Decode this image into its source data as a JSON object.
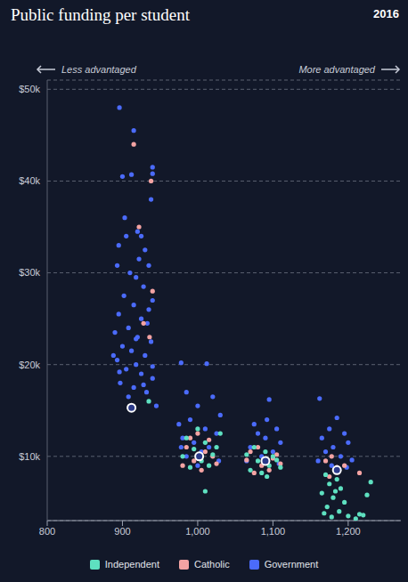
{
  "chart_data": {
    "type": "scatter",
    "title": "Public funding per student",
    "subtitle": "2016",
    "annotations": [
      "Less advantaged",
      "More advantaged"
    ],
    "xlim": [
      800,
      1270
    ],
    "xticks": [
      800,
      900,
      {
        "value": 1000,
        "label": "1,000"
      },
      {
        "value": 1100,
        "label": "1,100"
      },
      {
        "value": 1200,
        "label": "1,200"
      }
    ],
    "ylim": [
      3000,
      51000
    ],
    "yticks": [
      {
        "value": 10000,
        "label": "$10k"
      },
      {
        "value": 20000,
        "label": "$20k"
      },
      {
        "value": 30000,
        "label": "$30k"
      },
      {
        "value": 40000,
        "label": "$40k"
      },
      {
        "value": 50000,
        "label": "$50k"
      }
    ],
    "grid": true,
    "legend": "bottom",
    "marker": "circle",
    "series": [
      {
        "name": "Independent",
        "color": "#5ee0c0",
        "x": [
          935,
          1000,
          985,
          1010,
          995,
          1020,
          980,
          1005,
          1015,
          990,
          1025,
          1010,
          1030,
          1075,
          1090,
          1100,
          1080,
          1095,
          1110,
          1070,
          1085,
          1105,
          1065,
          1092,
          1170,
          1185,
          1175,
          1190,
          1165,
          1180,
          1195,
          1172,
          1188,
          1168,
          1200,
          1215,
          1230,
          1225,
          1178,
          1210,
          1220,
          1183
        ],
        "y": [
          16000,
          13000,
          12000,
          11500,
          10800,
          10200,
          10000,
          9500,
          9000,
          8800,
          11000,
          6200,
          12500,
          11000,
          10500,
          10000,
          9500,
          9000,
          8800,
          8500,
          8200,
          9600,
          10200,
          7800,
          8000,
          7500,
          7000,
          6500,
          6000,
          5500,
          5000,
          4500,
          4000,
          3800,
          3500,
          3700,
          7200,
          5800,
          3400,
          3200,
          3600,
          6200
        ]
      },
      {
        "name": "Catholic",
        "color": "#f4a3a3",
        "x": [
          915,
          938,
          922,
          940,
          936,
          928,
          1000,
          985,
          1010,
          995,
          1020,
          980,
          1005,
          1015,
          990,
          1025,
          1070,
          1085,
          1100,
          1075,
          1095,
          1110,
          1080,
          1065,
          1105,
          1170,
          1185,
          1178,
          1195,
          1175,
          1215
        ],
        "y": [
          44000,
          40000,
          35000,
          28000,
          23000,
          24500,
          12500,
          11000,
          10500,
          9500,
          10000,
          9000,
          8500,
          11800,
          12000,
          9200,
          10500,
          9000,
          9800,
          8200,
          8500,
          9200,
          11000,
          9600,
          10200,
          9500,
          8800,
          10000,
          9000,
          7800,
          8200
        ]
      },
      {
        "name": "Government",
        "color": "#4b6bfb",
        "x": [
          896,
          915,
          900,
          912,
          940,
          940,
          938,
          920,
          925,
          895,
          905,
          930,
          935,
          893,
          910,
          918,
          928,
          902,
          940,
          915,
          895,
          925,
          933,
          908,
          890,
          920,
          938,
          900,
          912,
          930,
          893,
          918,
          905,
          925,
          940,
          897,
          915,
          932,
          908,
          945,
          888,
          935,
          922,
          903,
          940,
          918,
          928,
          896,
          978,
          1012,
          985,
          1020,
          1000,
          1030,
          990,
          975,
          1010,
          1025,
          980,
          995,
          1015,
          1005,
          985,
          1028,
          1000,
          978,
          1075,
          1095,
          1105,
          1080,
          1090,
          1110,
          1070,
          1100,
          1085,
          1065,
          1108,
          1092,
          1162,
          1185,
          1175,
          1195,
          1165,
          1200,
          1180,
          1170,
          1190,
          1160,
          1178,
          1198,
          1205
        ],
        "y": [
          48000,
          45500,
          40500,
          40700,
          41500,
          40800,
          38000,
          34500,
          34000,
          33000,
          34000,
          32500,
          30800,
          30800,
          30000,
          29500,
          28500,
          27500,
          27000,
          26500,
          25500,
          25000,
          24500,
          24000,
          23500,
          23000,
          22500,
          22000,
          21500,
          21000,
          20500,
          20000,
          19500,
          19000,
          18500,
          18000,
          17500,
          17000,
          16500,
          15500,
          21000,
          26000,
          31500,
          36000,
          19800,
          22800,
          17800,
          19200,
          20200,
          20100,
          17000,
          16500,
          15500,
          14500,
          14000,
          13500,
          13000,
          12500,
          12000,
          11500,
          11000,
          10500,
          10000,
          9500,
          9000,
          11000,
          13500,
          16200,
          13000,
          12500,
          12000,
          11500,
          11000,
          10500,
          10000,
          9500,
          9200,
          14000,
          16300,
          14200,
          13000,
          12500,
          12000,
          11500,
          11000,
          10500,
          10000,
          9500,
          9000,
          8800,
          9600
        ]
      }
    ],
    "highlight": {
      "color": "#ffffff",
      "x": [
        912,
        1002,
        1090,
        1185
      ],
      "y": [
        15300,
        10000,
        9500,
        8500
      ]
    }
  }
}
